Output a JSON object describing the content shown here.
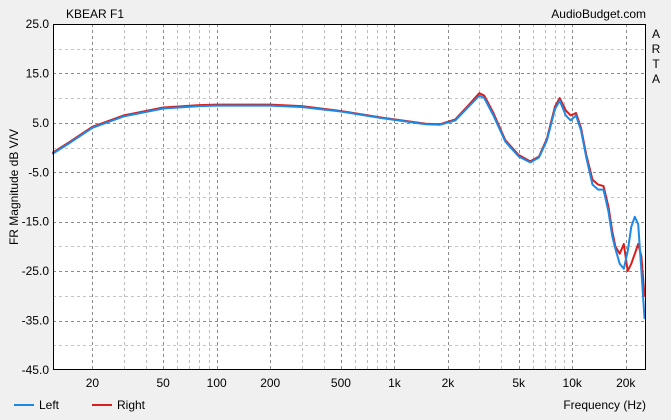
{
  "chart_data": {
    "type": "line",
    "title": "KBEAR F1",
    "watermark": "AudioBudget.com",
    "side_label": [
      "A",
      "R",
      "T",
      "A"
    ],
    "ylabel": "FR Magnitude dB V/V",
    "xlabel": "Frequency (Hz)",
    "x_scale": "log",
    "xlim": [
      12,
      26000
    ],
    "ylim": [
      -45,
      25
    ],
    "y_ticks": [
      25,
      15,
      5,
      -5,
      -15,
      -25,
      -35,
      -45
    ],
    "y_tick_labels": [
      "25.0",
      "15.0",
      "5.0",
      "-5.0",
      "-15.0",
      "-25.0",
      "-35.0",
      "-45.0"
    ],
    "x_ticks": [
      20,
      50,
      100,
      200,
      500,
      1000,
      2000,
      5000,
      10000,
      20000
    ],
    "x_tick_labels": [
      "20",
      "50",
      "100",
      "200",
      "500",
      "1k",
      "2k",
      "5k",
      "10k",
      "20k"
    ],
    "grid": true,
    "legend_position": "bottom-left",
    "series": [
      {
        "name": "Left",
        "color": "#1e88e5",
        "points": [
          [
            12,
            -1.2
          ],
          [
            15,
            1.0
          ],
          [
            20,
            4.0
          ],
          [
            30,
            6.3
          ],
          [
            50,
            7.9
          ],
          [
            80,
            8.4
          ],
          [
            100,
            8.5
          ],
          [
            150,
            8.5
          ],
          [
            200,
            8.5
          ],
          [
            300,
            8.2
          ],
          [
            500,
            7.3
          ],
          [
            800,
            6.1
          ],
          [
            1000,
            5.6
          ],
          [
            1500,
            4.7
          ],
          [
            1800,
            4.6
          ],
          [
            2200,
            5.5
          ],
          [
            2600,
            8.2
          ],
          [
            3000,
            10.5
          ],
          [
            3200,
            10.0
          ],
          [
            3600,
            6.5
          ],
          [
            4200,
            1.2
          ],
          [
            5000,
            -1.8
          ],
          [
            5800,
            -3.0
          ],
          [
            6500,
            -2.0
          ],
          [
            7200,
            1.5
          ],
          [
            8000,
            7.8
          ],
          [
            8500,
            9.5
          ],
          [
            9200,
            6.5
          ],
          [
            9800,
            5.5
          ],
          [
            10500,
            6.5
          ],
          [
            11200,
            3.5
          ],
          [
            12000,
            -2.0
          ],
          [
            13000,
            -7.5
          ],
          [
            14000,
            -8.5
          ],
          [
            15000,
            -8.5
          ],
          [
            16000,
            -13.0
          ],
          [
            16800,
            -18.0
          ],
          [
            17500,
            -20.5
          ],
          [
            18500,
            -23.5
          ],
          [
            19500,
            -24.5
          ],
          [
            20500,
            -21.0
          ],
          [
            21500,
            -16.0
          ],
          [
            22500,
            -14.0
          ],
          [
            23500,
            -15.5
          ],
          [
            24500,
            -25.0
          ],
          [
            25500,
            -34.5
          ]
        ]
      },
      {
        "name": "Right",
        "color": "#d81e1e",
        "points": [
          [
            12,
            -1.0
          ],
          [
            15,
            1.2
          ],
          [
            20,
            4.2
          ],
          [
            30,
            6.5
          ],
          [
            50,
            8.1
          ],
          [
            80,
            8.6
          ],
          [
            100,
            8.7
          ],
          [
            150,
            8.7
          ],
          [
            200,
            8.7
          ],
          [
            300,
            8.4
          ],
          [
            500,
            7.4
          ],
          [
            800,
            6.2
          ],
          [
            1000,
            5.7
          ],
          [
            1500,
            4.8
          ],
          [
            1800,
            4.7
          ],
          [
            2200,
            5.7
          ],
          [
            2600,
            8.5
          ],
          [
            3000,
            11.0
          ],
          [
            3200,
            10.5
          ],
          [
            3600,
            7.0
          ],
          [
            4200,
            1.5
          ],
          [
            5000,
            -1.5
          ],
          [
            5800,
            -2.8
          ],
          [
            6500,
            -1.8
          ],
          [
            7200,
            1.8
          ],
          [
            8000,
            8.3
          ],
          [
            8500,
            10.0
          ],
          [
            9200,
            7.5
          ],
          [
            9800,
            6.5
          ],
          [
            10500,
            7.0
          ],
          [
            11200,
            4.0
          ],
          [
            12000,
            -1.5
          ],
          [
            13000,
            -6.5
          ],
          [
            14000,
            -7.5
          ],
          [
            15000,
            -7.8
          ],
          [
            16000,
            -12.0
          ],
          [
            16800,
            -17.0
          ],
          [
            17500,
            -20.0
          ],
          [
            18500,
            -21.5
          ],
          [
            19500,
            -19.5
          ],
          [
            20500,
            -25.0
          ],
          [
            21500,
            -23.5
          ],
          [
            22500,
            -21.5
          ],
          [
            23500,
            -19.5
          ],
          [
            24500,
            -22.0
          ],
          [
            25500,
            -30.0
          ]
        ]
      }
    ]
  }
}
